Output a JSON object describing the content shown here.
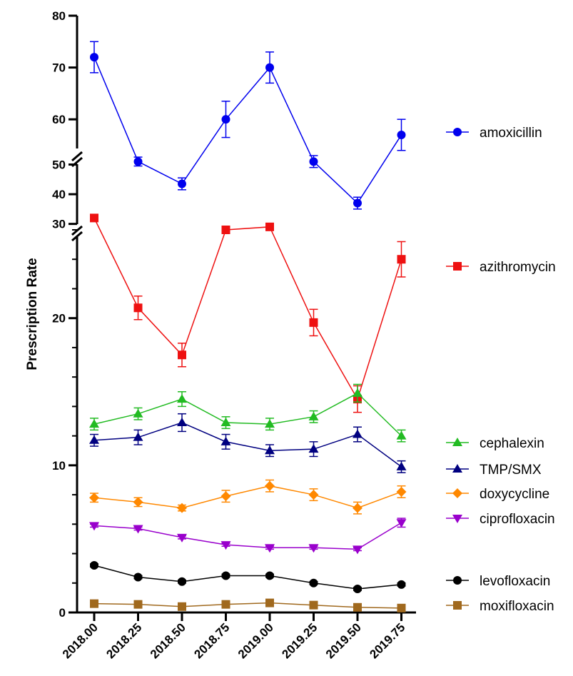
{
  "chart_data": {
    "type": "line",
    "title": "",
    "xlabel": "",
    "ylabel": "Prescription Rate",
    "x": [
      "2018.00",
      "2018.25",
      "2018.50",
      "2018.75",
      "2019.00",
      "2019.25",
      "2019.50",
      "2019.75"
    ],
    "y_axis": {
      "broken": true,
      "segments": [
        {
          "range": [
            0,
            26
          ],
          "ticks": [
            0,
            10,
            20
          ],
          "minor_step": 2
        },
        {
          "range": [
            28,
            53
          ],
          "ticks": [
            30,
            40,
            50
          ]
        },
        {
          "range": [
            53,
            80
          ],
          "ticks": [
            60,
            70,
            80
          ]
        }
      ]
    },
    "grid": false,
    "legend_position": "right, beside each series",
    "series": [
      {
        "name": "amoxicillin",
        "color": "#0000ee",
        "marker": "circle",
        "values": [
          72,
          51,
          43.5,
          60,
          70,
          51,
          37,
          57
        ],
        "errors": [
          3,
          1.5,
          2,
          3.5,
          3,
          2,
          2,
          3
        ]
      },
      {
        "name": "azithromycin",
        "color": "#ee1111",
        "marker": "square",
        "values": [
          32,
          20.7,
          17.5,
          26,
          29,
          19.7,
          14.5,
          24
        ],
        "errors": [
          0,
          0.8,
          0.8,
          0,
          0,
          0.9,
          0.9,
          1.2
        ]
      },
      {
        "name": "cephalexin",
        "color": "#22bb22",
        "marker": "triangle-up",
        "values": [
          12.8,
          13.5,
          14.5,
          12.9,
          12.8,
          13.3,
          14.9,
          12.0
        ],
        "errors": [
          0.4,
          0.4,
          0.5,
          0.4,
          0.4,
          0.4,
          0.6,
          0.4
        ]
      },
      {
        "name": "TMP/SMX",
        "color": "#000080",
        "marker": "triangle-up",
        "values": [
          11.7,
          11.9,
          12.9,
          11.6,
          11.0,
          11.1,
          12.1,
          9.9
        ],
        "errors": [
          0.4,
          0.5,
          0.6,
          0.5,
          0.4,
          0.5,
          0.5,
          0.4
        ]
      },
      {
        "name": "doxycycline",
        "color": "#ff8800",
        "marker": "diamond",
        "values": [
          7.8,
          7.5,
          7.1,
          7.9,
          8.6,
          8.0,
          7.1,
          8.2
        ],
        "errors": [
          0.3,
          0.3,
          0.2,
          0.4,
          0.4,
          0.4,
          0.4,
          0.4
        ]
      },
      {
        "name": "ciprofloxacin",
        "color": "#9900cc",
        "marker": "triangle-down",
        "values": [
          5.9,
          5.7,
          5.1,
          4.6,
          4.4,
          4.4,
          4.3,
          6.1
        ],
        "errors": [
          0.1,
          0.1,
          0.1,
          0.1,
          0.1,
          0.1,
          0.1,
          0.3
        ]
      },
      {
        "name": "levofloxacin",
        "color": "#000000",
        "marker": "circle",
        "values": [
          3.2,
          2.4,
          2.1,
          2.5,
          2.5,
          2.0,
          1.6,
          1.9
        ],
        "errors": [
          0.1,
          0.1,
          0.1,
          0.1,
          0.1,
          0.1,
          0.1,
          0.1
        ]
      },
      {
        "name": "moxifloxacin",
        "color": "#a0691e",
        "marker": "square",
        "values": [
          0.6,
          0.55,
          0.4,
          0.55,
          0.65,
          0.5,
          0.35,
          0.3
        ],
        "errors": [
          0.05,
          0.05,
          0.05,
          0.05,
          0.05,
          0.05,
          0.05,
          0.05
        ]
      }
    ]
  }
}
